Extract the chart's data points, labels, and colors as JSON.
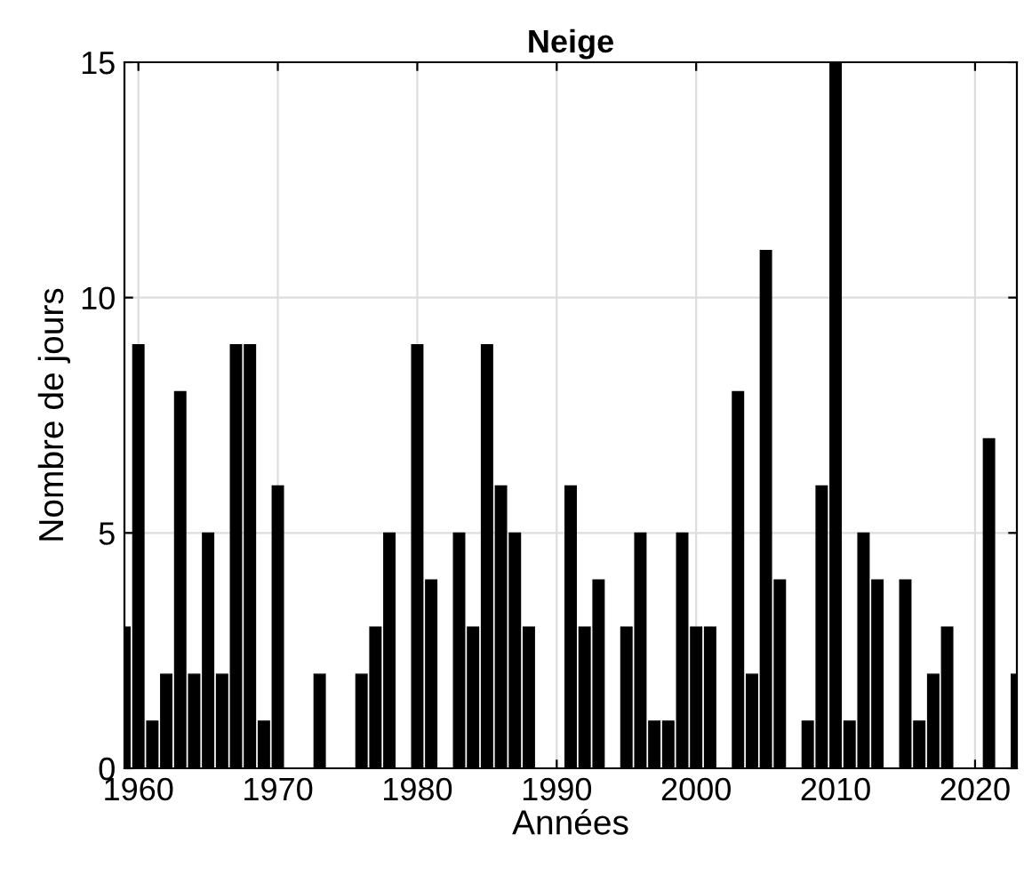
{
  "chart_data": {
    "type": "bar",
    "title": "Neige",
    "xlabel": "Années",
    "ylabel": "Nombre de jours",
    "x": [
      1959,
      1960,
      1961,
      1962,
      1963,
      1964,
      1965,
      1966,
      1967,
      1968,
      1969,
      1970,
      1971,
      1972,
      1973,
      1974,
      1975,
      1976,
      1977,
      1978,
      1979,
      1980,
      1981,
      1982,
      1983,
      1984,
      1985,
      1986,
      1987,
      1988,
      1989,
      1990,
      1991,
      1992,
      1993,
      1994,
      1995,
      1996,
      1997,
      1998,
      1999,
      2000,
      2001,
      2002,
      2003,
      2004,
      2005,
      2006,
      2007,
      2008,
      2009,
      2010,
      2011,
      2012,
      2013,
      2014,
      2015,
      2016,
      2017,
      2018,
      2019,
      2020,
      2021,
      2022,
      2023
    ],
    "values": [
      3,
      9,
      1,
      2,
      8,
      2,
      5,
      2,
      9,
      9,
      1,
      6,
      0,
      0,
      2,
      0,
      0,
      2,
      3,
      5,
      0,
      9,
      4,
      0,
      5,
      3,
      9,
      6,
      5,
      3,
      0,
      0,
      6,
      3,
      4,
      0,
      3,
      5,
      1,
      1,
      5,
      3,
      3,
      0,
      8,
      2,
      11,
      4,
      0,
      1,
      6,
      15,
      1,
      5,
      4,
      0,
      4,
      1,
      2,
      3,
      0,
      0,
      7,
      0,
      2
    ],
    "color": "#000000",
    "xlim": [
      1959,
      2023
    ],
    "xticks": [
      1960,
      1970,
      1980,
      1990,
      2000,
      2010,
      2020
    ],
    "ylim": [
      0,
      15
    ],
    "yticks": [
      0,
      5,
      10,
      15
    ],
    "grid": true
  }
}
